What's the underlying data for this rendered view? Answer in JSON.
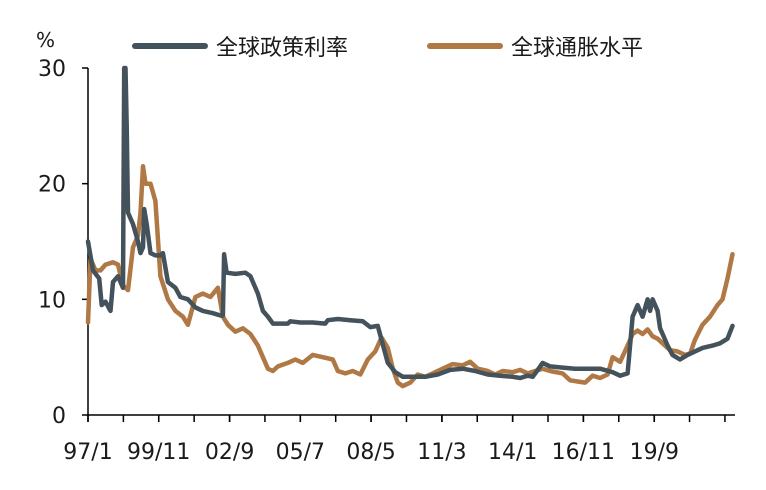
{
  "colors": {
    "policy_rate": "#44525c",
    "inflation": "#b07845",
    "axis": "#000000"
  },
  "chart_data": {
    "type": "line",
    "ylabel": "%",
    "ylim": [
      0,
      30
    ],
    "yticks": [
      0,
      10,
      20,
      30
    ],
    "xlim": [
      1997.0,
      2022.9
    ],
    "x_tick_labels": [
      "97/1",
      "99/11",
      "02/9",
      "05/7",
      "08/5",
      "11/3",
      "14/1",
      "16/11",
      "19/9"
    ],
    "x_tick_positions": [
      1997.0,
      1999.83,
      2002.67,
      2005.5,
      2008.33,
      2011.17,
      2014.0,
      2016.83,
      2019.67
    ],
    "legend": {
      "position": "top"
    },
    "series": [
      {
        "name": "全球政策利率",
        "color": "#44525c",
        "points": [
          [
            1997.0,
            15.0
          ],
          [
            1997.2,
            12.5
          ],
          [
            1997.45,
            11.8
          ],
          [
            1997.55,
            9.5
          ],
          [
            1997.7,
            9.8
          ],
          [
            1997.85,
            9.2
          ],
          [
            1997.9,
            9.0
          ],
          [
            1998.0,
            11.5
          ],
          [
            1998.2,
            12.0
          ],
          [
            1998.4,
            11.0
          ],
          [
            1998.45,
            30.0
          ],
          [
            1998.5,
            30.0
          ],
          [
            1998.55,
            25.0
          ],
          [
            1998.6,
            17.5
          ],
          [
            1998.8,
            16.5
          ],
          [
            1999.0,
            15.0
          ],
          [
            1999.1,
            14.0
          ],
          [
            1999.2,
            14.5
          ],
          [
            1999.25,
            17.8
          ],
          [
            1999.35,
            16.5
          ],
          [
            1999.5,
            14.0
          ],
          [
            1999.7,
            13.8
          ],
          [
            1999.9,
            13.8
          ],
          [
            2000.0,
            14.0
          ],
          [
            2000.2,
            11.5
          ],
          [
            2000.5,
            11.0
          ],
          [
            2000.7,
            10.2
          ],
          [
            2001.0,
            10.0
          ],
          [
            2001.3,
            9.3
          ],
          [
            2001.6,
            9.0
          ],
          [
            2002.0,
            8.8
          ],
          [
            2002.3,
            8.6
          ],
          [
            2002.4,
            8.6
          ],
          [
            2002.45,
            13.9
          ],
          [
            2002.55,
            12.3
          ],
          [
            2002.9,
            12.2
          ],
          [
            2003.3,
            12.3
          ],
          [
            2003.5,
            12.0
          ],
          [
            2003.8,
            10.5
          ],
          [
            2004.0,
            9.0
          ],
          [
            2004.2,
            8.5
          ],
          [
            2004.4,
            7.9
          ],
          [
            2004.8,
            7.9
          ],
          [
            2005.0,
            7.9
          ],
          [
            2005.1,
            8.1
          ],
          [
            2005.5,
            8.0
          ],
          [
            2006.0,
            8.0
          ],
          [
            2006.5,
            7.9
          ],
          [
            2006.6,
            8.2
          ],
          [
            2007.0,
            8.3
          ],
          [
            2007.5,
            8.2
          ],
          [
            2008.0,
            8.1
          ],
          [
            2008.3,
            7.6
          ],
          [
            2008.6,
            7.7
          ],
          [
            2008.75,
            6.5
          ],
          [
            2009.0,
            4.5
          ],
          [
            2009.3,
            3.7
          ],
          [
            2009.6,
            3.3
          ],
          [
            2010.0,
            3.3
          ],
          [
            2010.5,
            3.3
          ],
          [
            2011.0,
            3.5
          ],
          [
            2011.5,
            3.9
          ],
          [
            2012.0,
            4.0
          ],
          [
            2012.5,
            3.8
          ],
          [
            2013.0,
            3.5
          ],
          [
            2013.5,
            3.4
          ],
          [
            2014.0,
            3.3
          ],
          [
            2014.3,
            3.2
          ],
          [
            2014.6,
            3.4
          ],
          [
            2014.8,
            3.3
          ],
          [
            2015.0,
            3.9
          ],
          [
            2015.2,
            4.5
          ],
          [
            2015.5,
            4.2
          ],
          [
            2016.0,
            4.1
          ],
          [
            2016.5,
            4.0
          ],
          [
            2017.0,
            4.0
          ],
          [
            2017.5,
            4.0
          ],
          [
            2018.0,
            3.7
          ],
          [
            2018.3,
            3.4
          ],
          [
            2018.6,
            3.6
          ],
          [
            2018.8,
            8.5
          ],
          [
            2019.0,
            9.5
          ],
          [
            2019.2,
            8.5
          ],
          [
            2019.4,
            10.0
          ],
          [
            2019.5,
            9.0
          ],
          [
            2019.6,
            10.0
          ],
          [
            2019.8,
            9.0
          ],
          [
            2019.9,
            7.5
          ],
          [
            2020.0,
            7.0
          ],
          [
            2020.2,
            6.0
          ],
          [
            2020.4,
            5.2
          ],
          [
            2020.7,
            4.8
          ],
          [
            2021.0,
            5.2
          ],
          [
            2021.3,
            5.5
          ],
          [
            2021.6,
            5.8
          ],
          [
            2022.0,
            6.0
          ],
          [
            2022.3,
            6.2
          ],
          [
            2022.6,
            6.6
          ],
          [
            2022.8,
            7.7
          ]
        ]
      },
      {
        "name": "全球通胀水平",
        "color": "#b07845",
        "points": [
          [
            1997.0,
            8.0
          ],
          [
            1997.1,
            13.5
          ],
          [
            1997.3,
            12.5
          ],
          [
            1997.5,
            12.5
          ],
          [
            1997.7,
            13.0
          ],
          [
            1998.0,
            13.2
          ],
          [
            1998.2,
            13.0
          ],
          [
            1998.4,
            11.2
          ],
          [
            1998.6,
            10.8
          ],
          [
            1998.8,
            14.5
          ],
          [
            1999.0,
            15.5
          ],
          [
            1999.1,
            17.5
          ],
          [
            1999.2,
            21.5
          ],
          [
            1999.3,
            20.0
          ],
          [
            1999.5,
            20.0
          ],
          [
            1999.7,
            18.5
          ],
          [
            1999.9,
            12.0
          ],
          [
            2000.2,
            10.0
          ],
          [
            2000.5,
            9.0
          ],
          [
            2000.8,
            8.5
          ],
          [
            2001.0,
            7.8
          ],
          [
            2001.3,
            10.2
          ],
          [
            2001.6,
            10.5
          ],
          [
            2001.9,
            10.2
          ],
          [
            2002.2,
            11.0
          ],
          [
            2002.4,
            8.5
          ],
          [
            2002.6,
            7.8
          ],
          [
            2002.9,
            7.2
          ],
          [
            2003.2,
            7.5
          ],
          [
            2003.5,
            7.0
          ],
          [
            2003.8,
            6.0
          ],
          [
            2004.0,
            5.0
          ],
          [
            2004.2,
            4.0
          ],
          [
            2004.4,
            3.8
          ],
          [
            2004.6,
            4.2
          ],
          [
            2005.0,
            4.5
          ],
          [
            2005.3,
            4.8
          ],
          [
            2005.6,
            4.5
          ],
          [
            2006.0,
            5.2
          ],
          [
            2006.4,
            5.0
          ],
          [
            2006.8,
            4.8
          ],
          [
            2007.0,
            3.8
          ],
          [
            2007.3,
            3.6
          ],
          [
            2007.6,
            3.8
          ],
          [
            2007.9,
            3.5
          ],
          [
            2008.2,
            4.8
          ],
          [
            2008.5,
            5.5
          ],
          [
            2008.75,
            6.7
          ],
          [
            2009.0,
            5.8
          ],
          [
            2009.2,
            4.0
          ],
          [
            2009.4,
            2.8
          ],
          [
            2009.6,
            2.5
          ],
          [
            2009.9,
            2.8
          ],
          [
            2010.2,
            3.5
          ],
          [
            2010.5,
            3.3
          ],
          [
            2010.8,
            3.6
          ],
          [
            2011.2,
            4.0
          ],
          [
            2011.6,
            4.4
          ],
          [
            2012.0,
            4.3
          ],
          [
            2012.3,
            4.6
          ],
          [
            2012.6,
            4.0
          ],
          [
            2013.0,
            3.8
          ],
          [
            2013.3,
            3.5
          ],
          [
            2013.6,
            3.8
          ],
          [
            2014.0,
            3.7
          ],
          [
            2014.3,
            3.9
          ],
          [
            2014.6,
            3.6
          ],
          [
            2014.9,
            3.8
          ],
          [
            2015.2,
            4.0
          ],
          [
            2015.5,
            3.8
          ],
          [
            2016.0,
            3.6
          ],
          [
            2016.3,
            3.0
          ],
          [
            2016.6,
            2.9
          ],
          [
            2016.9,
            2.8
          ],
          [
            2017.2,
            3.4
          ],
          [
            2017.5,
            3.2
          ],
          [
            2017.8,
            3.5
          ],
          [
            2018.0,
            5.0
          ],
          [
            2018.3,
            4.6
          ],
          [
            2018.6,
            6.0
          ],
          [
            2018.8,
            7.0
          ],
          [
            2019.0,
            7.3
          ],
          [
            2019.2,
            7.0
          ],
          [
            2019.4,
            7.4
          ],
          [
            2019.6,
            6.8
          ],
          [
            2019.8,
            6.6
          ],
          [
            2020.0,
            6.2
          ],
          [
            2020.3,
            5.6
          ],
          [
            2020.6,
            5.5
          ],
          [
            2020.9,
            5.2
          ],
          [
            2021.1,
            5.3
          ],
          [
            2021.3,
            6.5
          ],
          [
            2021.6,
            7.8
          ],
          [
            2021.9,
            8.5
          ],
          [
            2022.2,
            9.5
          ],
          [
            2022.4,
            10.0
          ],
          [
            2022.6,
            11.8
          ],
          [
            2022.8,
            13.9
          ]
        ]
      }
    ]
  }
}
